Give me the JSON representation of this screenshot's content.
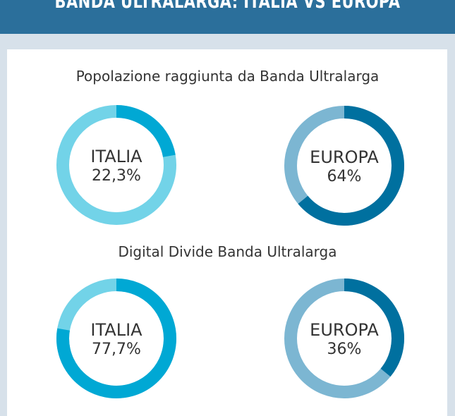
{
  "header": {
    "title": "BANDA ULTRALARGA: ITALIA VS EUROPA"
  },
  "colors": {
    "header_bg": "#2b6f9b",
    "page_bg": "#d7e1ea",
    "italia_dark": "#00a8d4",
    "italia_light": "#72d3e8",
    "europa_dark": "#00709f",
    "europa_light": "#7cb6d2"
  },
  "sections": [
    {
      "title": "Popolazione raggiunta da Banda Ultralarga"
    },
    {
      "title": "Digital Divide Banda Ultralarga"
    }
  ],
  "chart_data": [
    {
      "type": "pie",
      "title": "Popolazione raggiunta da Banda Ultralarga",
      "series": [
        {
          "name": "ITALIA",
          "label": "22,3%",
          "value": 22.3
        },
        {
          "name": "EUROPA",
          "label": "64%",
          "value": 64
        }
      ]
    },
    {
      "type": "pie",
      "title": "Digital Divide Banda Ultralarga",
      "series": [
        {
          "name": "ITALIA",
          "label": "77,7%",
          "value": 77.7
        },
        {
          "name": "EUROPA",
          "label": "36%",
          "value": 36
        }
      ]
    }
  ]
}
